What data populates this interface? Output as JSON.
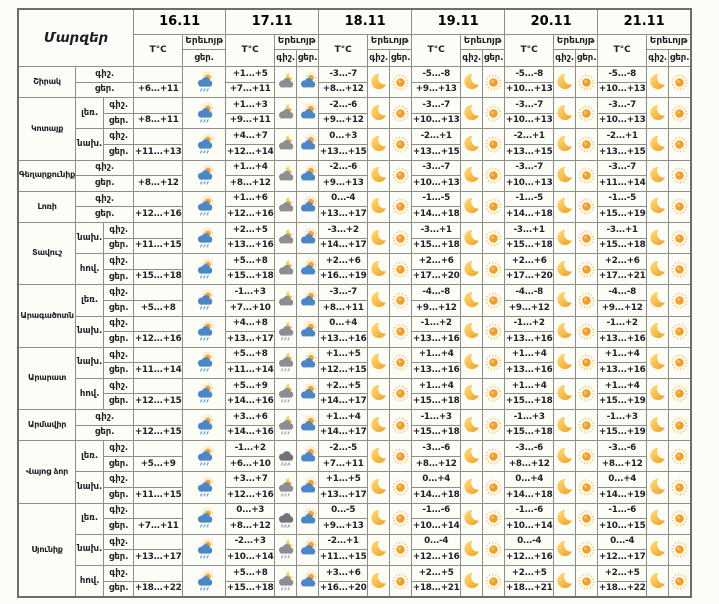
{
  "header": {
    "regions_label": "Մարզեր",
    "temp_label": "T°C",
    "phenomenon_label": "Երեւոյթ",
    "night_label": "գիշ.",
    "day_label": "ցեր.",
    "dates": [
      "16.11",
      "17.11",
      "18.11",
      "19.11",
      "20.11",
      "21.11"
    ]
  },
  "colors": {
    "sun": "#ef9f2d",
    "sun_rays": "#f6c877",
    "moon": "#f5c23f",
    "cloud_day": "#4c86c6",
    "cloud_night": "#8d8d92",
    "cloud_dark": "#737378",
    "rain_day": "#5f9fd6",
    "rain_night": "#97a5bd",
    "grid_border": "#8f8f89",
    "text": "#20202c"
  },
  "icon_legend": {
    "sun-cloud-rain": "sun behind cloud with rain",
    "sun-cloud": "sun behind cloud",
    "cloud-moon": "moon behind cloud",
    "cloud-moon-rain": "moon behind cloud with rain",
    "cloud-rain-snow": "dark cloud with rain and snow",
    "moon": "clear night crescent moon",
    "sun": "clear day sun"
  },
  "regions": [
    {
      "name": "Շիրակ",
      "zones": [
        {
          "terrain": null,
          "days": [
            [
              "",
              "+6...+11",
              null,
              "sun-cloud-rain"
            ],
            [
              "+1...+5",
              "+7...+11",
              "cloud-moon",
              "sun-cloud"
            ],
            [
              "-3...-7",
              "+8...+12",
              "moon",
              "sun"
            ],
            [
              "-5...-8",
              "+9...+13",
              "moon",
              "sun"
            ],
            [
              "-5...-8",
              "+10...+13",
              "moon",
              "sun"
            ],
            [
              "-5...-8",
              "+10...+13",
              "moon",
              "sun"
            ]
          ]
        }
      ]
    },
    {
      "name": "Կոտայք",
      "zones": [
        {
          "terrain": "լեռ.",
          "days": [
            [
              "",
              "+8...+11",
              null,
              "sun-cloud-rain"
            ],
            [
              "+1...+3",
              "+9...+11",
              "cloud-moon",
              "sun-cloud"
            ],
            [
              "-2...-6",
              "+9...+12",
              "moon",
              "sun"
            ],
            [
              "-3...-7",
              "+10...+13",
              "moon",
              "sun"
            ],
            [
              "-3...-7",
              "+10...+13",
              "moon",
              "sun"
            ],
            [
              "-3...-7",
              "+10...+13",
              "moon",
              "sun"
            ]
          ]
        },
        {
          "terrain": "նախ.",
          "days": [
            [
              "",
              "+11...+13",
              null,
              "sun-cloud-rain"
            ],
            [
              "+4...+7",
              "+12...+14",
              "cloud-moon",
              "sun-cloud"
            ],
            [
              "0...+3",
              "+13...+15",
              "moon",
              "sun"
            ],
            [
              "-2...+1",
              "+13...+15",
              "moon",
              "sun"
            ],
            [
              "-2...+1",
              "+13...+15",
              "moon",
              "sun"
            ],
            [
              "-2...+1",
              "+13...+15",
              "moon",
              "sun"
            ]
          ]
        }
      ]
    },
    {
      "name": "Գեղարքունիք",
      "zones": [
        {
          "terrain": null,
          "days": [
            [
              "",
              "+8...+12",
              null,
              "sun-cloud-rain"
            ],
            [
              "+1...+4",
              "+8...+12",
              "cloud-moon",
              "sun-cloud"
            ],
            [
              "-2...-6",
              "+9...+13",
              "moon",
              "sun"
            ],
            [
              "-3...-7",
              "+10...+13",
              "moon",
              "sun"
            ],
            [
              "-3...-7",
              "+10...+13",
              "moon",
              "sun"
            ],
            [
              "-3...-7",
              "+11...+14",
              "moon",
              "sun"
            ]
          ]
        }
      ]
    },
    {
      "name": "Լոռի",
      "zones": [
        {
          "terrain": null,
          "days": [
            [
              "",
              "+12...+16",
              null,
              "sun-cloud-rain"
            ],
            [
              "+1...+6",
              "+12...+16",
              "cloud-moon",
              "sun-cloud"
            ],
            [
              "0...-4",
              "+13...+17",
              "moon",
              "sun"
            ],
            [
              "-1...-5",
              "+14...+18",
              "moon",
              "sun"
            ],
            [
              "-1...-5",
              "+14...+18",
              "moon",
              "sun"
            ],
            [
              "-1...-5",
              "+15...+19",
              "moon",
              "sun"
            ]
          ]
        }
      ]
    },
    {
      "name": "Տավուշ",
      "zones": [
        {
          "terrain": "նախ.",
          "days": [
            [
              "",
              "+11...+15",
              null,
              "sun-cloud-rain"
            ],
            [
              "+2...+5",
              "+13...+16",
              "cloud-moon",
              "sun-cloud"
            ],
            [
              "-3...+2",
              "+14...+17",
              "moon",
              "sun"
            ],
            [
              "-3...+1",
              "+15...+18",
              "moon",
              "sun"
            ],
            [
              "-3...+1",
              "+15...+18",
              "moon",
              "sun"
            ],
            [
              "-3...+1",
              "+15...+18",
              "moon",
              "sun"
            ]
          ]
        },
        {
          "terrain": "հով.",
          "days": [
            [
              "",
              "+15...+18",
              null,
              "sun-cloud-rain"
            ],
            [
              "+5...+8",
              "+15...+18",
              "cloud-moon",
              "sun-cloud"
            ],
            [
              "+2...+6",
              "+16...+19",
              "moon",
              "sun"
            ],
            [
              "+2...+6",
              "+17...+20",
              "moon",
              "sun"
            ],
            [
              "+2...+6",
              "+17...+20",
              "moon",
              "sun"
            ],
            [
              "+2...+6",
              "+17...+21",
              "moon",
              "sun"
            ]
          ]
        }
      ]
    },
    {
      "name": "Արագածոտն",
      "zones": [
        {
          "terrain": "լեռ.",
          "days": [
            [
              "",
              "+5...+8",
              null,
              "sun-cloud-rain"
            ],
            [
              "-1...+3",
              "+7...+10",
              "cloud-moon",
              "sun-cloud"
            ],
            [
              "-3...-7",
              "+8...+11",
              "moon",
              "sun"
            ],
            [
              "-4...-8",
              "+9...+12",
              "moon",
              "sun"
            ],
            [
              "-4...-8",
              "+9...+12",
              "moon",
              "sun"
            ],
            [
              "-4...-8",
              "+9...+12",
              "moon",
              "sun"
            ]
          ]
        },
        {
          "terrain": "նախ.",
          "days": [
            [
              "",
              "+12...+16",
              null,
              "sun-cloud-rain"
            ],
            [
              "+4...+8",
              "+13...+17",
              "cloud-moon-rain",
              "sun-cloud"
            ],
            [
              "0...+4",
              "+13...+16",
              "moon",
              "sun"
            ],
            [
              "-1...+2",
              "+13...+16",
              "moon",
              "sun"
            ],
            [
              "-1...+2",
              "+13...+16",
              "moon",
              "sun"
            ],
            [
              "-1...+2",
              "+13...+16",
              "moon",
              "sun"
            ]
          ]
        }
      ]
    },
    {
      "name": "Արարատ",
      "zones": [
        {
          "terrain": "նախ.",
          "days": [
            [
              "",
              "+11...+14",
              null,
              "sun-cloud-rain"
            ],
            [
              "+5...+8",
              "+11...+14",
              "cloud-moon-rain",
              "sun-cloud"
            ],
            [
              "+1...+5",
              "+12...+15",
              "moon",
              "sun"
            ],
            [
              "+1...+4",
              "+13...+16",
              "moon",
              "sun"
            ],
            [
              "+1...+4",
              "+13...+16",
              "moon",
              "sun"
            ],
            [
              "+1...+4",
              "+13...+16",
              "moon",
              "sun"
            ]
          ]
        },
        {
          "terrain": "հով.",
          "days": [
            [
              "",
              "+12...+15",
              null,
              "sun-cloud-rain"
            ],
            [
              "+5...+9",
              "+14...+16",
              "cloud-moon-rain",
              "sun-cloud"
            ],
            [
              "+2...+5",
              "+14...+17",
              "moon",
              "sun"
            ],
            [
              "+1...+4",
              "+15...+18",
              "moon",
              "sun"
            ],
            [
              "+1...+4",
              "+15...+18",
              "moon",
              "sun"
            ],
            [
              "+1...+4",
              "+15...+19",
              "moon",
              "sun"
            ]
          ]
        }
      ]
    },
    {
      "name": "Արմավիր",
      "zones": [
        {
          "terrain": null,
          "days": [
            [
              "",
              "+12...+15",
              null,
              "sun-cloud-rain"
            ],
            [
              "+3...+6",
              "+14...+16",
              "cloud-moon-rain",
              "sun-cloud"
            ],
            [
              "+1...+4",
              "+14...+17",
              "moon",
              "sun"
            ],
            [
              "-1...+3",
              "+15...+18",
              "moon",
              "sun"
            ],
            [
              "-1...+3",
              "+15...+18",
              "moon",
              "sun"
            ],
            [
              "-1...+3",
              "+15...+19",
              "moon",
              "sun"
            ]
          ]
        }
      ]
    },
    {
      "name": "Վայոց ձոր",
      "zones": [
        {
          "terrain": "լեռ.",
          "days": [
            [
              "",
              "+5...+9",
              null,
              "sun-cloud-rain"
            ],
            [
              "-1...+2",
              "+6...+10",
              "cloud-rain-snow",
              "sun-cloud"
            ],
            [
              "-2...-5",
              "+7...+11",
              "moon",
              "sun"
            ],
            [
              "-3...-6",
              "+8...+12",
              "moon",
              "sun"
            ],
            [
              "-3...-6",
              "+8...+12",
              "moon",
              "sun"
            ],
            [
              "-3...-6",
              "+8...+12",
              "moon",
              "sun"
            ]
          ]
        },
        {
          "terrain": "նախ.",
          "days": [
            [
              "",
              "+11...+15",
              null,
              "sun-cloud-rain"
            ],
            [
              "+3...+7",
              "+12...+16",
              "cloud-moon-rain",
              "sun-cloud"
            ],
            [
              "+1...+5",
              "+13...+17",
              "moon",
              "sun"
            ],
            [
              "0...+4",
              "+14...+18",
              "moon",
              "sun"
            ],
            [
              "0...+4",
              "+14...+18",
              "moon",
              "sun"
            ],
            [
              "0...+4",
              "+14...+19",
              "moon",
              "sun"
            ]
          ]
        }
      ]
    },
    {
      "name": "Սյունիք",
      "zones": [
        {
          "terrain": "լեռ.",
          "days": [
            [
              "",
              "+7...+11",
              null,
              "sun-cloud-rain"
            ],
            [
              "0...+3",
              "+8...+12",
              "cloud-rain-snow",
              "sun-cloud"
            ],
            [
              "0...-5",
              "+9...+13",
              "moon",
              "sun"
            ],
            [
              "-1...-6",
              "+10...+14",
              "moon",
              "sun"
            ],
            [
              "-1...-6",
              "+10...+14",
              "moon",
              "sun"
            ],
            [
              "-1...-6",
              "+10...+15",
              "moon",
              "sun"
            ]
          ]
        },
        {
          "terrain": "նախ.",
          "days": [
            [
              "",
              "+13...+17",
              null,
              "sun-cloud-rain"
            ],
            [
              "-2...+3",
              "+10...+14",
              "cloud-moon-rain",
              "sun-cloud"
            ],
            [
              "-2...+1",
              "+11...+15",
              "moon",
              "sun"
            ],
            [
              "0...-4",
              "+12...+16",
              "moon",
              "sun"
            ],
            [
              "0...-4",
              "+12...+16",
              "moon",
              "sun"
            ],
            [
              "0...-4",
              "+12...+17",
              "moon",
              "sun"
            ]
          ]
        },
        {
          "terrain": "հով.",
          "days": [
            [
              "",
              "+18...+22",
              null,
              "sun-cloud-rain"
            ],
            [
              "+5...+8",
              "+15...+18",
              "cloud-moon-rain",
              "sun-cloud"
            ],
            [
              "+3...+6",
              "+16...+20",
              "moon",
              "sun"
            ],
            [
              "+2...+5",
              "+18...+21",
              "moon",
              "sun"
            ],
            [
              "+2...+5",
              "+18...+21",
              "moon",
              "sun"
            ],
            [
              "+2...+5",
              "+18...+22",
              "moon",
              "sun"
            ]
          ]
        }
      ]
    }
  ]
}
